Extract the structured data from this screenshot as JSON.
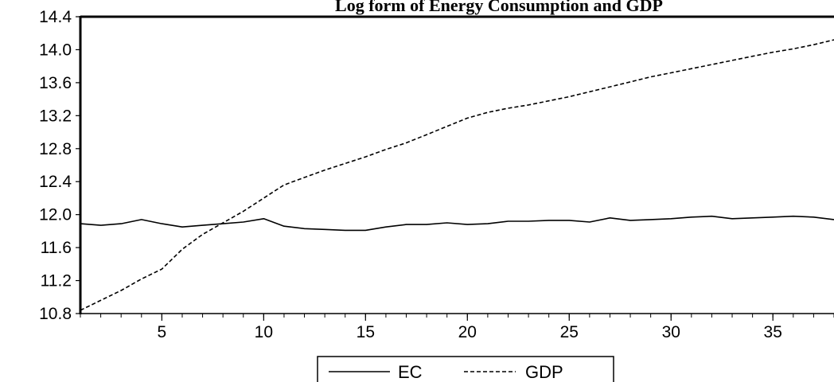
{
  "chart_data": {
    "type": "line",
    "title": "Log form of Energy Consumption and GDP",
    "xlabel": "",
    "ylabel": "",
    "xlim": [
      1,
      38
    ],
    "ylim": [
      10.8,
      14.4
    ],
    "x_ticks": [
      "5",
      "10",
      "15",
      "20",
      "25",
      "30",
      "35"
    ],
    "y_ticks": [
      "10.8",
      "11.2",
      "11.6",
      "12.0",
      "12.4",
      "12.8",
      "13.2",
      "13.6",
      "14.0",
      "14.4"
    ],
    "grid": false,
    "legend_position": "bottom-center",
    "x": [
      1,
      2,
      3,
      4,
      5,
      6,
      7,
      8,
      9,
      10,
      11,
      12,
      13,
      14,
      15,
      16,
      17,
      18,
      19,
      20,
      21,
      22,
      23,
      24,
      25,
      26,
      27,
      28,
      29,
      30,
      31,
      32,
      33,
      34,
      35,
      36,
      37,
      38
    ],
    "series": [
      {
        "name": "EC",
        "style": "solid",
        "color": "#000000",
        "values": [
          11.89,
          11.87,
          11.89,
          11.94,
          11.89,
          11.85,
          11.87,
          11.89,
          11.91,
          11.95,
          11.86,
          11.83,
          11.82,
          11.81,
          11.81,
          11.85,
          11.88,
          11.88,
          11.9,
          11.88,
          11.89,
          11.92,
          11.92,
          11.93,
          11.93,
          11.91,
          11.96,
          11.93,
          11.94,
          11.95,
          11.97,
          11.98,
          11.95,
          11.96,
          11.97,
          11.98,
          11.97,
          11.94
        ]
      },
      {
        "name": "GDP",
        "style": "dashed",
        "color": "#000000",
        "values": [
          10.84,
          10.96,
          11.08,
          11.22,
          11.34,
          11.58,
          11.76,
          11.9,
          12.04,
          12.2,
          12.36,
          12.45,
          12.54,
          12.62,
          12.7,
          12.79,
          12.87,
          12.97,
          13.07,
          13.17,
          13.24,
          13.29,
          13.33,
          13.38,
          13.43,
          13.49,
          13.55,
          13.61,
          13.67,
          13.72,
          13.77,
          13.82,
          13.87,
          13.92,
          13.97,
          14.01,
          14.06,
          14.12
        ]
      }
    ]
  }
}
